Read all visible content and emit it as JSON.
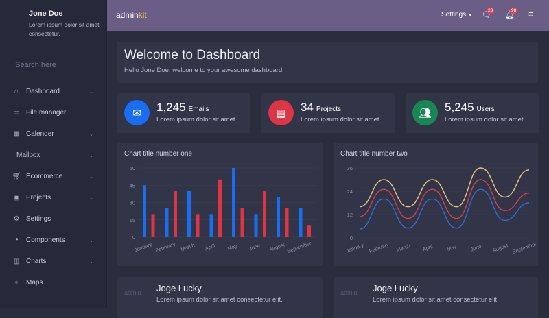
{
  "sidebar": {
    "user": {
      "name": "Jone Doe",
      "desc": "Lorem ipsum dolor sit amet consectetur."
    },
    "search_placeholder": "Search here",
    "items": [
      {
        "label": "Dashboard",
        "icon": "home-icon",
        "chevron": true
      },
      {
        "label": "File manager",
        "icon": "folder-icon",
        "chevron": false
      },
      {
        "label": "Calender",
        "icon": "calendar-icon",
        "chevron": true
      },
      {
        "label": "Mailbox",
        "icon": "",
        "chevron": true
      },
      {
        "label": "Ecommerce",
        "icon": "cart-icon",
        "chevron": true
      },
      {
        "label": "Projects",
        "icon": "briefcase-icon",
        "chevron": true
      },
      {
        "label": "Settings",
        "icon": "gear-icon",
        "chevron": false
      },
      {
        "label": "Components",
        "icon": "pie-icon",
        "chevron": true
      },
      {
        "label": "Charts",
        "icon": "bar-chart-icon",
        "chevron": true
      },
      {
        "label": "Maps",
        "icon": "map-pin-icon",
        "chevron": false
      }
    ]
  },
  "header": {
    "brand_a": "admin",
    "brand_b": "kit",
    "settings": "Settings",
    "messages_badge": "23",
    "notifications_badge": "98"
  },
  "welcome": {
    "title": "Welcome to Dashboard",
    "subtitle": "Hello Jone Doe, welcome to your awesome dashboard!"
  },
  "stats": [
    {
      "value": "1,245",
      "label": "Emails",
      "desc": "Lorem ipsum dolor sit amet",
      "color": "#1a6cf0",
      "icon": "mail-icon"
    },
    {
      "value": "34",
      "label": "Projects",
      "desc": "Lorem ipsum dolor sit amet",
      "color": "#dc3545",
      "icon": "file-icon"
    },
    {
      "value": "5,245",
      "label": "Users",
      "desc": "Lorem ipsum dolor sit amet",
      "color": "#198754",
      "icon": "users-icon"
    }
  ],
  "chart_data": [
    {
      "type": "bar",
      "title": "Chart title number one",
      "categories": [
        "January",
        "February",
        "March",
        "April",
        "May",
        "June",
        "August",
        "September"
      ],
      "series": [
        {
          "values": [
            45,
            25,
            40,
            20,
            60,
            20,
            35,
            25
          ],
          "color": "#1a6cf0"
        },
        {
          "values": [
            20,
            40,
            20,
            50,
            25,
            40,
            25,
            10
          ],
          "color": "#dc3545"
        }
      ],
      "ylim": [
        0,
        60
      ],
      "yticks": [
        0,
        15,
        30,
        45,
        60
      ],
      "grid": true
    },
    {
      "type": "line",
      "title": "Chart title number two",
      "categories": [
        "January",
        "February",
        "March",
        "April",
        "May",
        "June",
        "August",
        "September"
      ],
      "series": [
        {
          "values": [
            4.5,
            20,
            5,
            20,
            5,
            25,
            9,
            18
          ],
          "color": "#2f6fd6"
        },
        {
          "values": [
            11,
            25,
            10,
            25,
            10,
            30,
            14,
            23
          ],
          "color": "#d3404f"
        },
        {
          "values": [
            16,
            30,
            16,
            30,
            16,
            36,
            21,
            35
          ],
          "color": "#f0c27a"
        }
      ],
      "ylim": [
        0,
        36
      ],
      "yticks": [
        0,
        12,
        24,
        36
      ],
      "grid": true
    }
  ],
  "people": [
    {
      "name": "Joge Lucky",
      "desc": "Lorem ipsum dolor sit amet consectetur elit.",
      "img_alt": "admin"
    },
    {
      "name": "Joge Lucky",
      "desc": "Lorem ipsum dolor sit amet consectetur elit.",
      "img_alt": "admin"
    }
  ]
}
